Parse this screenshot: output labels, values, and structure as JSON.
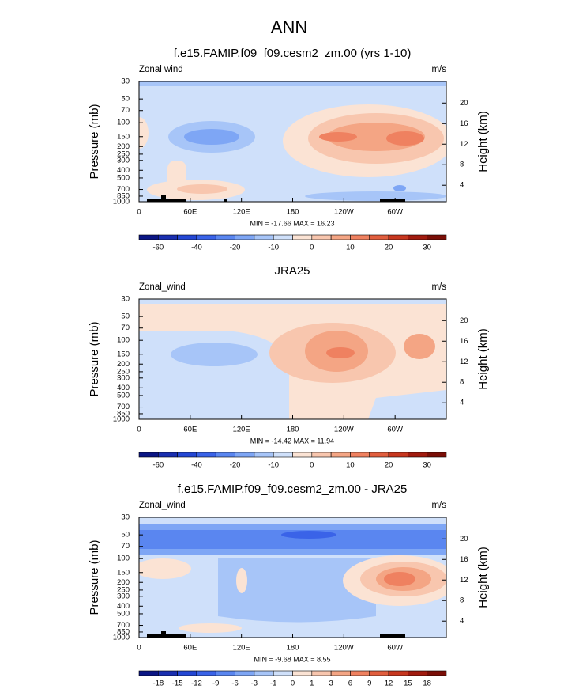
{
  "title": "ANN",
  "chart_data": [
    {
      "type": "contour",
      "title": "f.e15.FAMIP.f09_f09.cesm2_zm.00 (yrs 1-10)",
      "left_label": "Zonal wind",
      "right_label": "m/s",
      "ylabel": "Pressure (mb)",
      "y2label": "Height (km)",
      "stats": "MIN = -17.66  MAX = 16.23",
      "ylim": [
        1000,
        30
      ],
      "ylog": true,
      "yticks": [
        30,
        50,
        70,
        100,
        150,
        200,
        250,
        300,
        400,
        500,
        700,
        850,
        1000
      ],
      "y2lim": [
        0.8,
        24.2
      ],
      "y2ticks": [
        4,
        8,
        12,
        16,
        20
      ],
      "xlim": [
        0,
        360
      ],
      "xticks": [
        0,
        {
          "value": 60,
          "label": "60E"
        },
        {
          "value": 120,
          "label": "120E"
        },
        180,
        {
          "value": 240,
          "label": "120W"
        },
        {
          "value": 300,
          "label": "60W"
        }
      ],
      "colorbar": {
        "labels": [
          -60,
          -40,
          -20,
          -10,
          0,
          10,
          20,
          30
        ],
        "label_every": 2,
        "colors": [
          "#0b1685",
          "#1a2fb0",
          "#2447d4",
          "#3a63e8",
          "#5a86f0",
          "#7ea6f5",
          "#a7c5f8",
          "#cfe0fa",
          "#fbe3d4",
          "#f8c6ae",
          "#f4a584",
          "#ef8160",
          "#e15e3e",
          "#c7371f",
          "#a11b0f",
          "#7a0e07"
        ]
      }
    },
    {
      "type": "contour",
      "title": "JRA25",
      "left_label": "Zonal_wind",
      "right_label": "m/s",
      "ylabel": "Pressure (mb)",
      "y2label": "Height (km)",
      "stats": "MIN = -14.42  MAX = 11.94",
      "ylim": [
        1000,
        30
      ],
      "ylog": true,
      "yticks": [
        30,
        50,
        70,
        100,
        150,
        200,
        250,
        300,
        400,
        500,
        700,
        850,
        1000
      ],
      "y2lim": [
        0.8,
        24.2
      ],
      "y2ticks": [
        4,
        8,
        12,
        16,
        20
      ],
      "xlim": [
        0,
        360
      ],
      "xticks": [
        0,
        {
          "value": 60,
          "label": "60E"
        },
        {
          "value": 120,
          "label": "120E"
        },
        180,
        {
          "value": 240,
          "label": "120W"
        },
        {
          "value": 300,
          "label": "60W"
        }
      ],
      "colorbar": {
        "labels": [
          -60,
          -40,
          -20,
          -10,
          0,
          10,
          20,
          30
        ],
        "label_every": 2,
        "colors": [
          "#0b1685",
          "#1a2fb0",
          "#2447d4",
          "#3a63e8",
          "#5a86f0",
          "#7ea6f5",
          "#a7c5f8",
          "#cfe0fa",
          "#fbe3d4",
          "#f8c6ae",
          "#f4a584",
          "#ef8160",
          "#e15e3e",
          "#c7371f",
          "#a11b0f",
          "#7a0e07"
        ]
      }
    },
    {
      "type": "contour",
      "title": "f.e15.FAMIP.f09_f09.cesm2_zm.00 - JRA25",
      "left_label": "Zonal_wind",
      "right_label": "m/s",
      "ylabel": "Pressure (mb)",
      "y2label": "Height (km)",
      "stats": "MIN = -9.68  MAX = 8.55",
      "ylim": [
        1000,
        30
      ],
      "ylog": true,
      "yticks": [
        30,
        50,
        70,
        100,
        150,
        200,
        250,
        300,
        400,
        500,
        700,
        850,
        1000
      ],
      "y2lim": [
        0.8,
        24.2
      ],
      "y2ticks": [
        4,
        8,
        12,
        16,
        20
      ],
      "xlim": [
        0,
        360
      ],
      "xticks": [
        0,
        {
          "value": 60,
          "label": "60E"
        },
        {
          "value": 120,
          "label": "120E"
        },
        180,
        {
          "value": 240,
          "label": "120W"
        },
        {
          "value": 300,
          "label": "60W"
        }
      ],
      "colorbar": {
        "labels": [
          -18,
          -15,
          -12,
          -9,
          -6,
          -3,
          -1,
          0,
          1,
          3,
          6,
          9,
          12,
          15,
          18
        ],
        "label_every": 1,
        "colors": [
          "#0b1685",
          "#1a2fb0",
          "#2447d4",
          "#3a63e8",
          "#5a86f0",
          "#7ea6f5",
          "#a7c5f8",
          "#cfe0fa",
          "#fbe3d4",
          "#f8c6ae",
          "#f4a584",
          "#ef8160",
          "#e15e3e",
          "#c7371f",
          "#a11b0f",
          "#7a0e07"
        ]
      }
    }
  ]
}
